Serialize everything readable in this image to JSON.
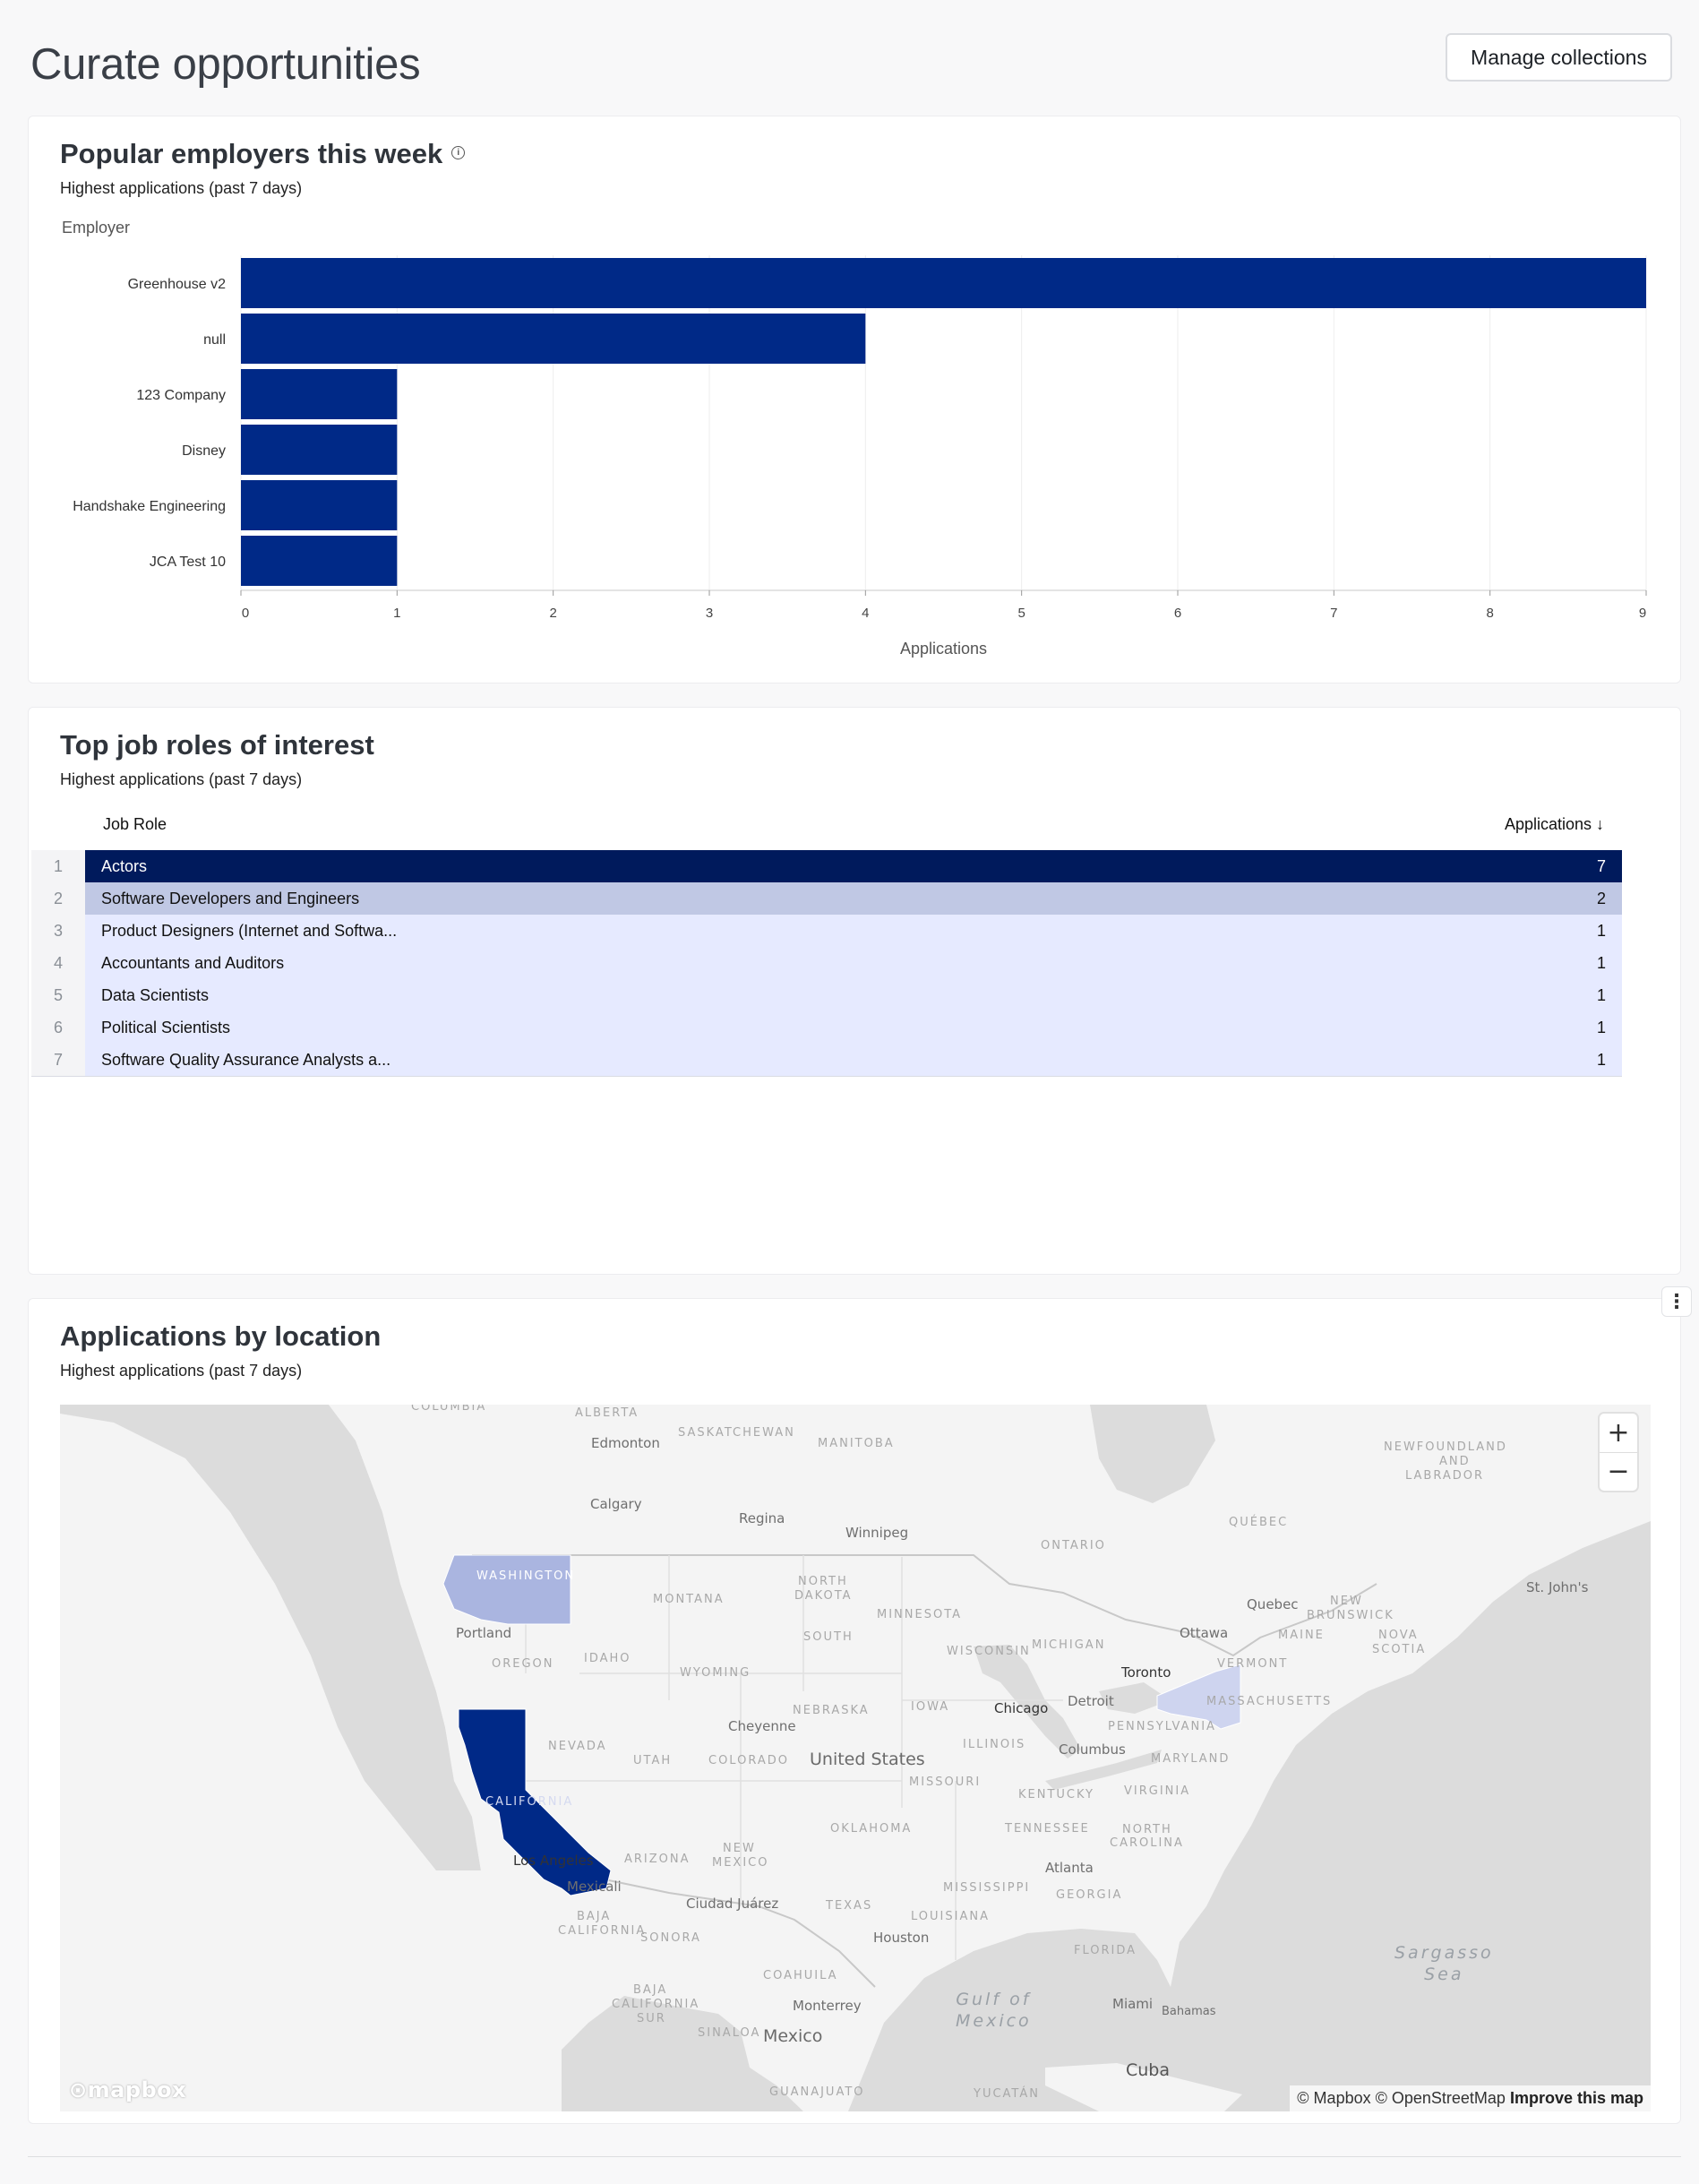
{
  "page": {
    "title": "Curate opportunities",
    "manage_button": "Manage collections"
  },
  "colors": {
    "bar": "#002987",
    "navy": "#001a5c",
    "accent_light": "#e6eaff",
    "accent_mid": "#c0c8e4"
  },
  "employers": {
    "title": "Popular employers this week",
    "info_icon": "info-icon",
    "subtitle": "Highest applications (past 7 days)",
    "chart_data": {
      "type": "bar",
      "orientation": "horizontal",
      "categories": [
        "Greenhouse v2",
        "null",
        "123 Company",
        "Disney",
        "Handshake Engineering",
        "JCA Test 10"
      ],
      "values": [
        9,
        4,
        1,
        1,
        1,
        1
      ],
      "ylabel": "Employer",
      "xlabel": "Applications",
      "xlim": [
        0,
        9
      ],
      "xticks": [
        0,
        1,
        2,
        3,
        4,
        5,
        6,
        7,
        8,
        9
      ],
      "grid": true,
      "legend": "none"
    }
  },
  "job_roles": {
    "title": "Top job roles of interest",
    "subtitle": "Highest applications (past 7 days)",
    "columns": {
      "role": "Job Role",
      "applications": "Applications ↓"
    },
    "rows": [
      {
        "index": "1",
        "role": "Actors",
        "applications": "7"
      },
      {
        "index": "2",
        "role": "Software Developers and Engineers",
        "applications": "2"
      },
      {
        "index": "3",
        "role": "Product Designers (Internet and Softwa...",
        "applications": "1"
      },
      {
        "index": "4",
        "role": "Accountants and Auditors",
        "applications": "1"
      },
      {
        "index": "5",
        "role": "Data Scientists",
        "applications": "1"
      },
      {
        "index": "6",
        "role": "Political Scientists",
        "applications": "1"
      },
      {
        "index": "7",
        "role": "Software Quality Assurance Analysts a...",
        "applications": "1"
      }
    ]
  },
  "location": {
    "title": "Applications by location",
    "subtitle": "Highest applications (past 7 days)",
    "more_menu_icon": "kebab-icon",
    "highlighted_states": [
      {
        "name": "California",
        "level": "high"
      },
      {
        "name": "Washington",
        "level": "medium"
      },
      {
        "name": "New York",
        "level": "low"
      }
    ],
    "labels": {
      "states": [
        "COLUMBIA",
        "ALBERTA",
        "SASKATCHEWAN",
        "MANITOBA",
        "ONTARIO",
        "QUÉBEC",
        "NEWFOUNDLAND",
        "AND",
        "LABRADOR",
        "WASHINGTON",
        "MONTANA",
        "NORTH",
        "DAKOTA",
        "MINNESOTA",
        "OREGON",
        "IDAHO",
        "SOUTH",
        "WYOMING",
        "WISCONSIN",
        "MICHIGAN",
        "NEW",
        "BRUNSWICK",
        "MAINE",
        "NOVA",
        "SCOTIA",
        "VERMONT",
        "MASSACHUSETTS",
        "NEBRASKA",
        "IOWA",
        "NEVADA",
        "UTAH",
        "COLORADO",
        "ILLINOIS",
        "PENNSYLVANIA",
        "MARYLAND",
        "MISSOURI",
        "KENTUCKY",
        "VIRGINIA",
        "CALIFORNIA",
        "TENNESSEE",
        "CAROLINA",
        "ARIZONA",
        "MEXICO",
        "OKLAHOMA",
        "MISSISSIPPI",
        "GEORGIA",
        "TEXAS",
        "LOUISIANA",
        "BAJA",
        "SONORA",
        "FLORIDA",
        "COAHUILA",
        "SUR",
        "SINALOA",
        "GUANAJUATO",
        "YUCATÁN"
      ],
      "cities": [
        "Edmonton",
        "Calgary",
        "Regina",
        "Winnipeg",
        "Quebec",
        "St. John's",
        "Portland",
        "Ottawa",
        "Toronto",
        "Chicago",
        "Detroit",
        "Cheyenne",
        "Columbus",
        "Los Angeles",
        "Mexicali",
        "Atlanta",
        "Ciudad Juárez",
        "Houston",
        "Monterrey",
        "Miami",
        "Bahamas",
        "Cuba"
      ],
      "countries": [
        "United States",
        "Mexico"
      ],
      "seas": [
        "Gulf of",
        "Mexico",
        "Sargasso",
        "Sea"
      ]
    },
    "zoom_in": "+",
    "zoom_out": "−",
    "logo": "mapbox",
    "attribution": {
      "text": "© Mapbox © OpenStreetMap",
      "link": "Improve this map"
    }
  }
}
